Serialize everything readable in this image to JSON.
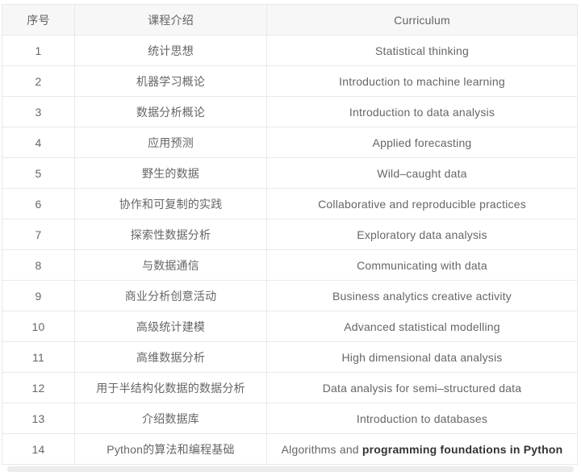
{
  "table": {
    "headers": [
      "序号",
      "课程介绍",
      "Curriculum"
    ],
    "rows": [
      {
        "num": "1",
        "zh": "统计思想",
        "en": "Statistical thinking"
      },
      {
        "num": "2",
        "zh": "机器学习概论",
        "en": "Introduction to machine learning"
      },
      {
        "num": "3",
        "zh": "数据分析概论",
        "en": "Introduction to data analysis"
      },
      {
        "num": "4",
        "zh": "应用预测",
        "en": "Applied forecasting"
      },
      {
        "num": "5",
        "zh": "野生的数据",
        "en": "Wild–caught data"
      },
      {
        "num": "6",
        "zh": "协作和可复制的实践",
        "en": "Collaborative and reproducible practices"
      },
      {
        "num": "7",
        "zh": "探索性数据分析",
        "en": "Exploratory data analysis"
      },
      {
        "num": "8",
        "zh": "与数据通信",
        "en": "Communicating with data"
      },
      {
        "num": "9",
        "zh": "商业分析创意活动",
        "en": "Business analytics creative activity"
      },
      {
        "num": "10",
        "zh": "高级统计建模",
        "en": "Advanced statistical modelling"
      },
      {
        "num": "11",
        "zh": "高维数据分析",
        "en": "High dimensional data analysis"
      },
      {
        "num": "12",
        "zh": "用于半结构化数据的数据分析",
        "en": "Data analysis for semi–structured data"
      },
      {
        "num": "13",
        "zh": "介绍数据库",
        "en": "Introduction to databases"
      },
      {
        "num": "14",
        "zh": "Python的算法和编程基础",
        "en": "Algorithms and ",
        "en_bold": "programming foundations in Python"
      }
    ]
  },
  "colors": {
    "header_bg": "#f7f7f7",
    "border": "#e9e9e9",
    "text": "#666666",
    "text_bold": "#333333",
    "bottom_bar": "#ececec"
  }
}
